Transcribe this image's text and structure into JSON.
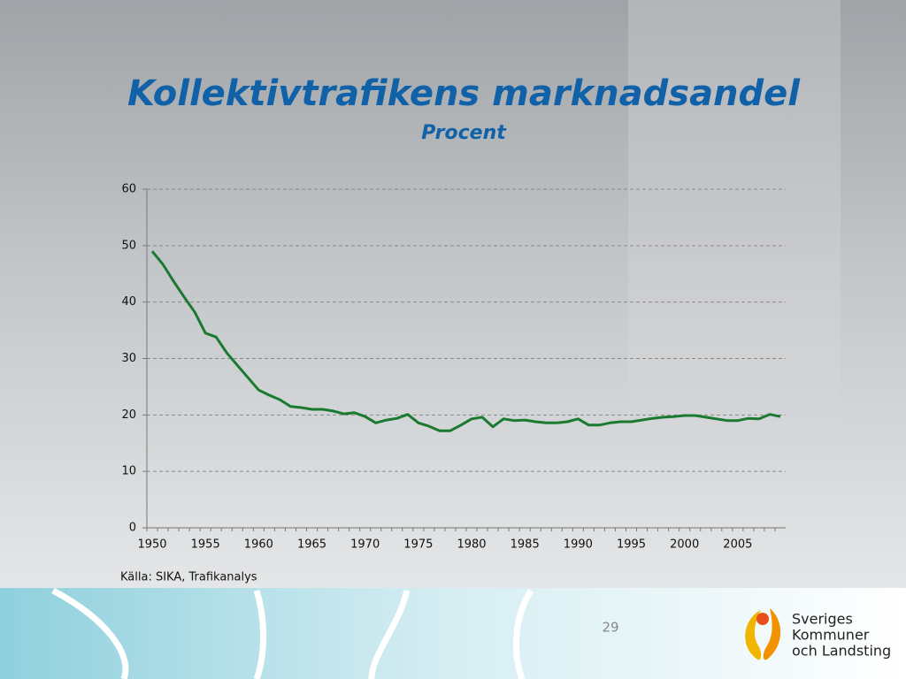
{
  "chart_data": {
    "type": "line",
    "title": "Kollektivtrafikens marknadsandel",
    "subtitle": "Procent",
    "source": "Källa: SIKA, Trafikanalys",
    "page_number": "29",
    "logo_lines": [
      "Sveriges",
      "Kommuner",
      "och Landsting"
    ],
    "categories": [
      1950,
      null,
      null,
      null,
      null,
      1955,
      null,
      null,
      null,
      null,
      1960,
      null,
      null,
      null,
      null,
      1965,
      null,
      null,
      null,
      null,
      1970,
      null,
      null,
      null,
      null,
      1975,
      null,
      null,
      null,
      null,
      1980,
      null,
      null,
      null,
      null,
      1985,
      null,
      null,
      null,
      null,
      1990,
      null,
      null,
      null,
      null,
      1995,
      null,
      null,
      null,
      null,
      2000,
      null,
      null,
      null,
      null,
      2005,
      null,
      null,
      null,
      null
    ],
    "values": [
      49.0,
      46.7,
      43.7,
      40.9,
      38.2,
      34.5,
      33.8,
      31.0,
      28.8,
      26.6,
      24.4,
      23.5,
      22.7,
      21.5,
      21.3,
      21.0,
      21.0,
      20.7,
      20.2,
      20.4,
      19.7,
      18.6,
      19.1,
      19.4,
      20.1,
      18.6,
      18.0,
      17.2,
      17.2,
      18.2,
      19.3,
      19.6,
      17.9,
      19.3,
      19.0,
      19.1,
      18.8,
      18.6,
      18.6,
      18.8,
      19.3,
      18.2,
      18.2,
      18.6,
      18.8,
      18.8,
      19.1,
      19.4,
      19.6,
      19.7,
      19.9,
      19.9,
      19.6,
      19.3,
      19.0,
      19.0,
      19.4,
      19.3,
      20.1,
      19.7
    ],
    "color": "#1a7a30",
    "ylim": [
      0,
      60
    ],
    "yticks": [
      0,
      10,
      20,
      30,
      40,
      50,
      60
    ],
    "grid": true
  }
}
